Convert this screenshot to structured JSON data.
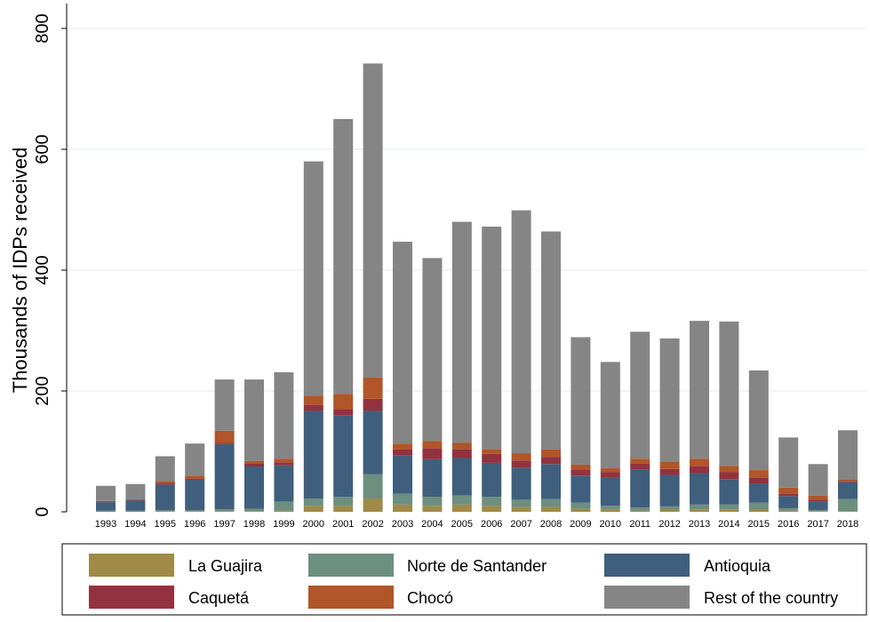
{
  "chart_data": {
    "type": "stacked_bar",
    "y_label": "Thousands of IDPs received",
    "categories": [
      "1993",
      "1994",
      "1995",
      "1996",
      "1997",
      "1998",
      "1999",
      "2000",
      "2001",
      "2002",
      "2003",
      "2004",
      "2005",
      "2006",
      "2007",
      "2008",
      "2009",
      "2010",
      "2011",
      "2012",
      "2013",
      "2014",
      "2015",
      "2016",
      "2017",
      "2018"
    ],
    "ylim": [
      0,
      800
    ],
    "yticks": [
      0,
      200,
      400,
      600,
      800
    ],
    "grid": true,
    "series": [
      {
        "name": "La Guajira",
        "color": "#a08a48",
        "values": [
          0,
          0,
          1,
          1,
          1,
          1,
          2,
          10,
          10,
          22,
          12,
          10,
          12,
          10,
          8,
          8,
          5,
          4,
          2,
          3,
          4,
          4,
          3,
          2,
          1,
          1
        ]
      },
      {
        "name": "Norte de Santander",
        "color": "#6d8f80",
        "values": [
          2,
          2,
          2,
          2,
          3,
          4,
          15,
          12,
          15,
          40,
          18,
          15,
          15,
          15,
          12,
          13,
          10,
          6,
          5,
          6,
          8,
          8,
          12,
          4,
          2,
          20
        ]
      },
      {
        "name": "Antioquia",
        "color": "#3f5f7d",
        "values": [
          14,
          17,
          42,
          50,
          108,
          70,
          60,
          145,
          135,
          105,
          63,
          62,
          62,
          56,
          53,
          58,
          45,
          46,
          63,
          52,
          52,
          42,
          32,
          20,
          14,
          28
        ]
      },
      {
        "name": "Caquetá",
        "color": "#93323f",
        "values": [
          1,
          1,
          2,
          2,
          2,
          5,
          5,
          10,
          10,
          20,
          10,
          18,
          15,
          15,
          12,
          12,
          10,
          10,
          10,
          10,
          12,
          12,
          10,
          4,
          3,
          2
        ]
      },
      {
        "name": "Chocó",
        "color": "#b05628",
        "values": [
          1,
          1,
          4,
          5,
          20,
          4,
          6,
          15,
          25,
          35,
          10,
          12,
          10,
          8,
          12,
          12,
          8,
          6,
          8,
          12,
          12,
          10,
          12,
          10,
          7,
          3
        ]
      },
      {
        "name": "Rest of the country",
        "color": "#858585",
        "values": [
          25,
          25,
          41,
          53,
          85,
          135,
          143,
          388,
          455,
          520,
          334,
          303,
          366,
          368,
          402,
          361,
          211,
          176,
          210,
          204,
          228,
          239,
          165,
          83,
          52,
          81
        ]
      }
    ]
  }
}
